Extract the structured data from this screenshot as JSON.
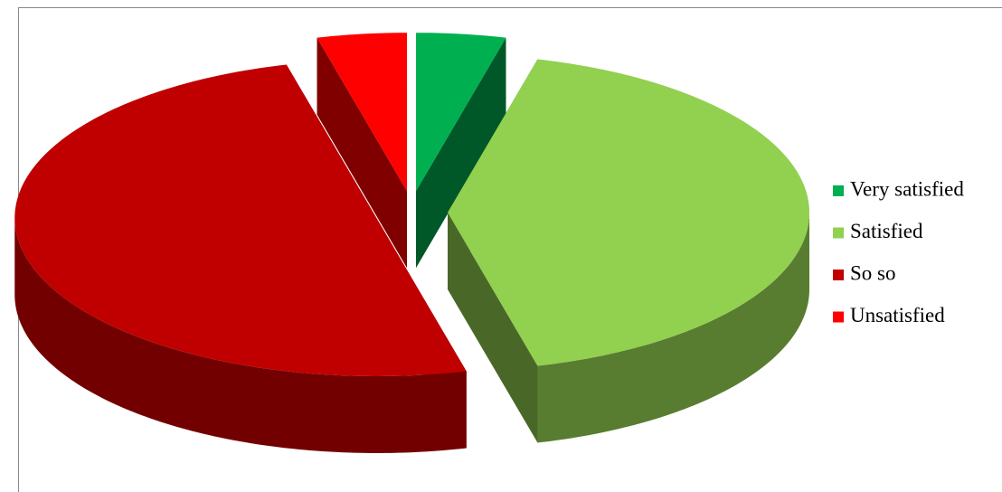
{
  "chart_data": {
    "type": "pie",
    "categories": [
      "Very satisfied",
      "Satisfied",
      "So so",
      "Unsatisfied"
    ],
    "values": [
      4,
      42,
      50,
      4
    ],
    "colors": [
      "#00b050",
      "#92d050",
      "#c00000",
      "#ff0000"
    ],
    "legend": "right",
    "explode": true
  }
}
